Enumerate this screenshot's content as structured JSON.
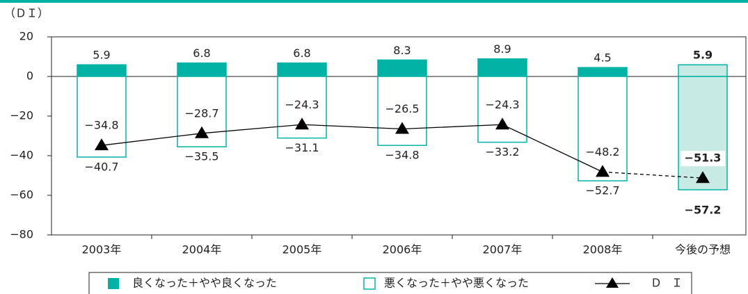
{
  "chart_data": {
    "type": "bar_line",
    "axis_unit_label": "（ＤＩ）",
    "categories": [
      "2003年",
      "2004年",
      "2005年",
      "2006年",
      "2007年",
      "2008年",
      "今後の予想"
    ],
    "series": [
      {
        "name": "良くなった＋やや良くなった",
        "color": "#00b3a4",
        "kind": "bar",
        "values": [
          5.9,
          6.8,
          6.8,
          8.3,
          8.9,
          4.5,
          5.9
        ]
      },
      {
        "name": "悪くなった＋やや悪くなった",
        "color": "#00b3a4",
        "kind": "bar",
        "values": [
          -40.7,
          -35.5,
          -31.1,
          -34.8,
          -33.2,
          -52.7,
          -57.2
        ],
        "value_labels": [
          "−40.7",
          "−35.5",
          "−31.1",
          "−34.8",
          "−33.2",
          "−52.7",
          "−57.2"
        ]
      },
      {
        "name": "ＤＩ",
        "color": "#000000",
        "kind": "line",
        "dashed_from_index": 5,
        "values": [
          -34.8,
          -28.7,
          -24.3,
          -26.5,
          -24.3,
          -48.2,
          -51.3
        ],
        "value_labels": [
          "−34.8",
          "−28.7",
          "−24.3",
          "−26.5",
          "−24.3",
          "−48.2",
          "−51.3"
        ]
      }
    ],
    "highlight_category_index": 6,
    "highlight_fill": "#c8eae5",
    "ylim": [
      -80,
      20
    ],
    "yticks": [
      {
        "value": -80,
        "label": "−80"
      },
      {
        "value": -60,
        "label": "−60"
      },
      {
        "value": -40,
        "label": "−40"
      },
      {
        "value": -20,
        "label": "−20"
      },
      0,
      20
    ],
    "legend": "bottom"
  }
}
